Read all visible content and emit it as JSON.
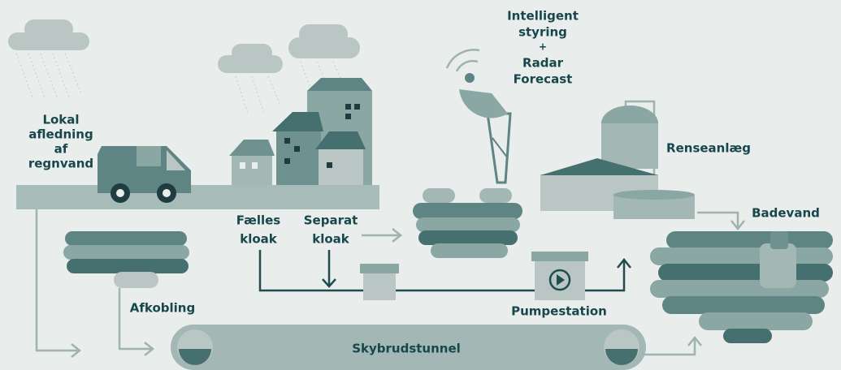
{
  "labels": {
    "local_drainage": [
      "Lokal",
      "afledning",
      "af",
      "regnvand"
    ],
    "intelligent_control": [
      "Intelligent",
      "styring",
      "+",
      "Radar",
      "Forecast"
    ],
    "treatment_plant": "Renseanlæg",
    "bathing_water": "Badevand",
    "combined_sewer": [
      "Fælles",
      "kloak"
    ],
    "separate_sewer": [
      "Separat",
      "kloak"
    ],
    "disconnection": "Afkobling",
    "pumping_station": "Pumpestation",
    "cloudburst_tunnel": "Skybrudstunnel"
  }
}
